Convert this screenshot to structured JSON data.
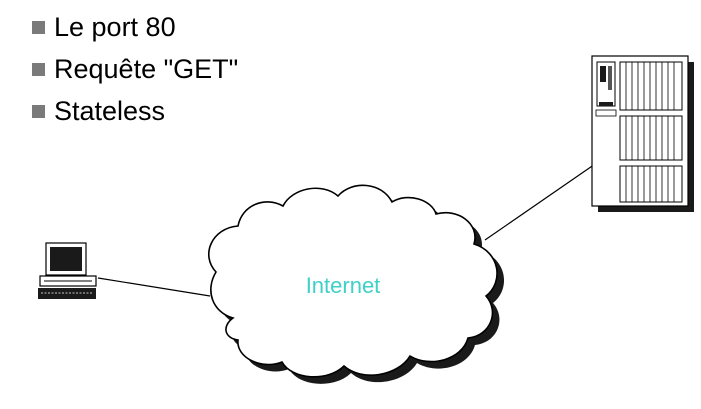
{
  "bullets": [
    {
      "text": "Le port 80"
    },
    {
      "text": "Requête \"GET\""
    },
    {
      "text": "Stateless"
    }
  ],
  "diagram": {
    "cloud_label": "Internet",
    "cloud_label_color": "#3fd0c8"
  }
}
